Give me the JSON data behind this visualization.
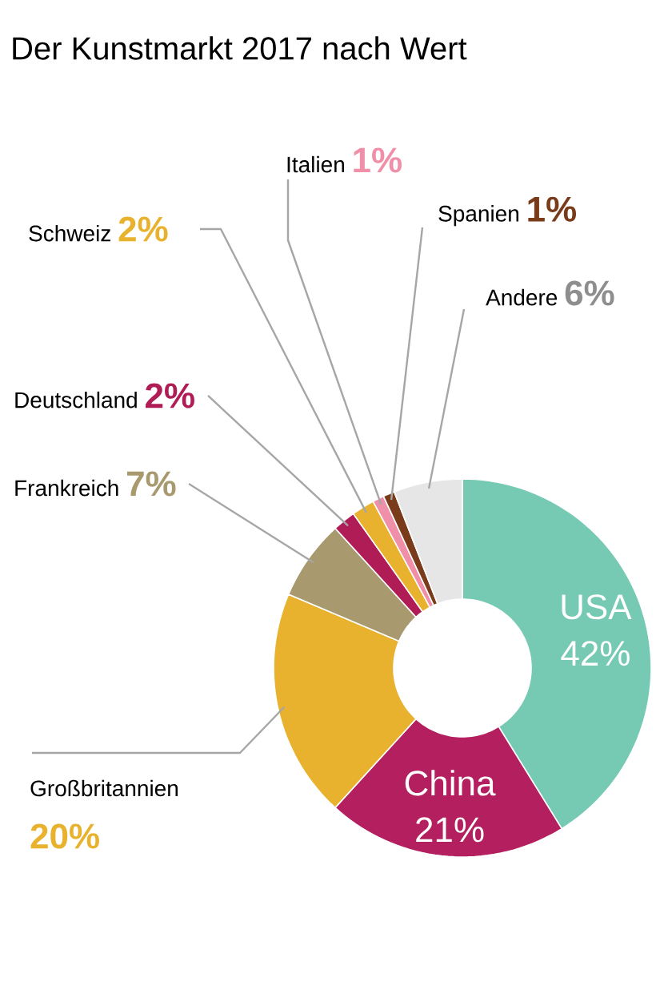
{
  "chart_data": {
    "type": "donut",
    "title": "Der Kunstmarkt 2017 nach Wert",
    "categories": [
      "USA",
      "China",
      "Großbritannien",
      "Frankreich",
      "Deutschland",
      "Schweiz",
      "Italien",
      "Spanien",
      "Andere"
    ],
    "values": [
      42,
      21,
      20,
      7,
      2,
      2,
      1,
      1,
      6
    ],
    "colors": [
      "#76c9b3",
      "#b31f5f",
      "#e8b22f",
      "#a89a6e",
      "#b01c55",
      "#e8b22f",
      "#f08fa8",
      "#7a3b1a",
      "#e6e6e6"
    ],
    "value_labels": [
      "42%",
      "21%",
      "20%",
      "7%",
      "2%",
      "2%",
      "1%",
      "1%",
      "6%"
    ]
  }
}
